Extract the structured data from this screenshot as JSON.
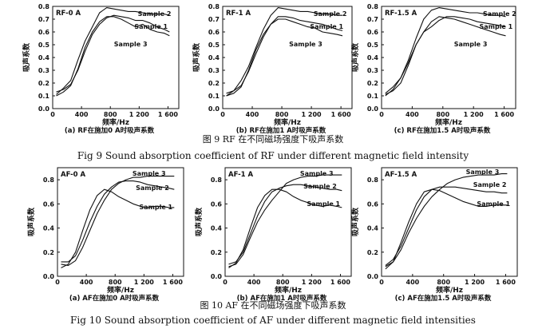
{
  "figures": [
    {
      "caption_cn": "图 9    RF 在不同磁场强度下吸声系数",
      "caption_en": "Fig 9 Sound absorption coefficient of RF under different magnetic field intensity"
    },
    {
      "caption_cn": "图 10    AF 在不同磁场强度下吸声系数",
      "caption_en": "Fig 10 Sound absorption coefficient of AF under different magnetic field intensities"
    }
  ],
  "chart_data": [
    {
      "type": "line",
      "tag": "RF-0 A",
      "caption": "(a) RF在施加0 A时吸声系数",
      "xlabel": "频率/Hz",
      "ylabel": "吸声系数",
      "xlim": [
        0,
        1750
      ],
      "ylim": [
        0,
        0.8
      ],
      "xticks": [
        "0",
        "400",
        "800",
        "1 200",
        "1 600"
      ],
      "yticks": [
        "0.0",
        "0.1",
        "0.2",
        "0.3",
        "0.4",
        "0.5",
        "0.6",
        "0.7",
        "0.8"
      ],
      "series": [
        {
          "name": "Sample 2",
          "x": [
            50,
            150,
            250,
            350,
            450,
            550,
            650,
            750,
            850,
            950,
            1050,
            1150,
            1250,
            1350,
            1450,
            1550,
            1620
          ],
          "y": [
            0.11,
            0.16,
            0.22,
            0.38,
            0.53,
            0.64,
            0.75,
            0.79,
            0.78,
            0.77,
            0.76,
            0.76,
            0.75,
            0.74,
            0.74,
            0.74,
            0.73
          ]
        },
        {
          "name": "Sample 1",
          "x": [
            50,
            150,
            250,
            350,
            450,
            550,
            650,
            750,
            850,
            950,
            1050,
            1150,
            1250,
            1350,
            1450,
            1550,
            1620
          ],
          "y": [
            0.13,
            0.15,
            0.19,
            0.3,
            0.45,
            0.58,
            0.66,
            0.71,
            0.73,
            0.72,
            0.71,
            0.69,
            0.69,
            0.67,
            0.64,
            0.62,
            0.6
          ]
        },
        {
          "name": "Sample 3",
          "x": [
            50,
            150,
            250,
            350,
            450,
            550,
            650,
            750,
            850,
            950,
            1050,
            1150,
            1250,
            1350,
            1450,
            1550,
            1620
          ],
          "y": [
            0.1,
            0.13,
            0.18,
            0.31,
            0.48,
            0.6,
            0.68,
            0.72,
            0.72,
            0.7,
            0.67,
            0.64,
            0.66,
            0.62,
            0.6,
            0.59,
            0.57
          ]
        }
      ]
    },
    {
      "type": "line",
      "tag": "RF-1 A",
      "caption": "(b) RF在施加1 A时吸声系数",
      "xlabel": "频率/Hz",
      "ylabel": "吸声系数",
      "xlim": [
        0,
        1750
      ],
      "ylim": [
        0,
        0.8
      ],
      "xticks": [
        "0",
        "400",
        "800",
        "1 200",
        "1 600"
      ],
      "yticks": [
        "0.0",
        "0.1",
        "0.2",
        "0.3",
        "0.4",
        "0.5",
        "0.6",
        "0.7",
        "0.8"
      ],
      "series": [
        {
          "name": "Sample 2",
          "x": [
            50,
            150,
            250,
            350,
            450,
            550,
            650,
            750,
            850,
            950,
            1050,
            1150,
            1250,
            1350,
            1450,
            1550,
            1620
          ],
          "y": [
            0.1,
            0.14,
            0.22,
            0.33,
            0.48,
            0.62,
            0.73,
            0.79,
            0.78,
            0.77,
            0.76,
            0.76,
            0.75,
            0.74,
            0.74,
            0.73,
            0.73
          ]
        },
        {
          "name": "Sample 1",
          "x": [
            50,
            150,
            250,
            350,
            450,
            550,
            650,
            750,
            850,
            950,
            1050,
            1150,
            1250,
            1350,
            1450,
            1550,
            1620
          ],
          "y": [
            0.12,
            0.14,
            0.18,
            0.29,
            0.43,
            0.56,
            0.66,
            0.72,
            0.72,
            0.71,
            0.69,
            0.68,
            0.67,
            0.66,
            0.64,
            0.62,
            0.61
          ]
        },
        {
          "name": "Sample 3",
          "x": [
            50,
            150,
            250,
            350,
            450,
            550,
            650,
            750,
            850,
            950,
            1050,
            1150,
            1250,
            1350,
            1450,
            1550,
            1620
          ],
          "y": [
            0.1,
            0.12,
            0.17,
            0.3,
            0.46,
            0.58,
            0.66,
            0.7,
            0.7,
            0.68,
            0.66,
            0.64,
            0.63,
            0.6,
            0.59,
            0.58,
            0.57
          ]
        }
      ]
    },
    {
      "type": "line",
      "tag": "RF-1.5 A",
      "caption": "(c) RF在施加1.5 A时吸声系数",
      "xlabel": "频率/Hz",
      "ylabel": "吸声系数",
      "xlim": [
        0,
        1750
      ],
      "ylim": [
        0,
        0.8
      ],
      "xticks": [
        "0",
        "400",
        "800",
        "1 200",
        "1 600"
      ],
      "yticks": [
        "0.0",
        "0.1",
        "0.2",
        "0.3",
        "0.4",
        "0.5",
        "0.6",
        "0.7",
        "0.8"
      ],
      "series": [
        {
          "name": "Sample 2",
          "x": [
            50,
            150,
            250,
            350,
            450,
            550,
            650,
            750,
            850,
            950,
            1050,
            1150,
            1250,
            1350,
            1450,
            1550,
            1620
          ],
          "y": [
            0.1,
            0.15,
            0.24,
            0.38,
            0.55,
            0.7,
            0.77,
            0.79,
            0.78,
            0.77,
            0.76,
            0.75,
            0.75,
            0.74,
            0.73,
            0.73,
            0.72
          ]
        },
        {
          "name": "Sample 1",
          "x": [
            50,
            150,
            250,
            350,
            450,
            550,
            650,
            750,
            850,
            950,
            1050,
            1150,
            1250,
            1350,
            1450,
            1550,
            1620
          ],
          "y": [
            0.12,
            0.17,
            0.24,
            0.36,
            0.5,
            0.6,
            0.64,
            0.69,
            0.72,
            0.72,
            0.71,
            0.7,
            0.68,
            0.67,
            0.66,
            0.65,
            0.64
          ]
        },
        {
          "name": "Sample 3",
          "x": [
            50,
            150,
            250,
            350,
            450,
            550,
            650,
            750,
            850,
            950,
            1050,
            1150,
            1250,
            1350,
            1450,
            1550,
            1620
          ],
          "y": [
            0.11,
            0.14,
            0.2,
            0.34,
            0.5,
            0.6,
            0.68,
            0.72,
            0.71,
            0.7,
            0.68,
            0.66,
            0.64,
            0.62,
            0.6,
            0.58,
            0.57
          ]
        }
      ]
    },
    {
      "type": "line",
      "tag": "AF-0 A",
      "caption": "(a) AF在施加0 A时吸声系数",
      "xlabel": "频率/Hz",
      "ylabel": "吸声系数",
      "xlim": [
        0,
        1750
      ],
      "ylim": [
        0,
        0.9
      ],
      "xticks": [
        "0",
        "400",
        "800",
        "1 200",
        "1 600"
      ],
      "yticks": [
        "0.0",
        "0.2",
        "0.4",
        "0.6",
        "0.8"
      ],
      "series": [
        {
          "name": "Sample 3",
          "x": [
            50,
            150,
            250,
            350,
            450,
            550,
            650,
            750,
            850,
            950,
            1050,
            1150,
            1250,
            1350,
            1450,
            1550,
            1620
          ],
          "y": [
            0.1,
            0.09,
            0.13,
            0.24,
            0.38,
            0.52,
            0.63,
            0.72,
            0.77,
            0.8,
            0.82,
            0.82,
            0.83,
            0.83,
            0.83,
            0.83,
            0.83
          ]
        },
        {
          "name": "Sample 2",
          "x": [
            50,
            150,
            250,
            350,
            450,
            550,
            650,
            750,
            850,
            950,
            1050,
            1150,
            1250,
            1350,
            1450,
            1550,
            1620
          ],
          "y": [
            0.12,
            0.12,
            0.17,
            0.3,
            0.45,
            0.58,
            0.68,
            0.74,
            0.78,
            0.79,
            0.79,
            0.78,
            0.76,
            0.75,
            0.74,
            0.73,
            0.72
          ]
        },
        {
          "name": "Sample 1",
          "x": [
            50,
            150,
            250,
            350,
            450,
            550,
            650,
            750,
            850,
            950,
            1050,
            1150,
            1250,
            1350,
            1450,
            1550,
            1620
          ],
          "y": [
            0.07,
            0.1,
            0.2,
            0.38,
            0.55,
            0.67,
            0.72,
            0.7,
            0.66,
            0.63,
            0.6,
            0.58,
            0.57,
            0.58,
            0.58,
            0.57,
            0.57
          ]
        }
      ]
    },
    {
      "type": "line",
      "tag": "AF-1 A",
      "caption": "(b) AF在施加1 A时吸声系数",
      "xlabel": "频率/Hz",
      "ylabel": "吸声系数",
      "xlim": [
        0,
        1750
      ],
      "ylim": [
        0,
        0.9
      ],
      "xticks": [
        "0",
        "400",
        "800",
        "1 200",
        "1 600"
      ],
      "yticks": [
        "0.0",
        "0.2",
        "0.4",
        "0.6",
        "0.8"
      ],
      "series": [
        {
          "name": "Sample 3",
          "x": [
            50,
            150,
            250,
            350,
            450,
            550,
            650,
            750,
            850,
            950,
            1050,
            1150,
            1250,
            1350,
            1450,
            1550,
            1620
          ],
          "y": [
            0.08,
            0.1,
            0.18,
            0.32,
            0.45,
            0.55,
            0.63,
            0.7,
            0.77,
            0.8,
            0.82,
            0.83,
            0.83,
            0.84,
            0.84,
            0.84,
            0.84
          ]
        },
        {
          "name": "Sample 2",
          "x": [
            50,
            150,
            250,
            350,
            450,
            550,
            650,
            750,
            850,
            950,
            1050,
            1150,
            1250,
            1350,
            1450,
            1550,
            1620
          ],
          "y": [
            0.1,
            0.12,
            0.2,
            0.35,
            0.5,
            0.62,
            0.7,
            0.73,
            0.75,
            0.76,
            0.76,
            0.75,
            0.74,
            0.73,
            0.72,
            0.72,
            0.71
          ]
        },
        {
          "name": "Sample 1",
          "x": [
            50,
            150,
            250,
            350,
            450,
            550,
            650,
            750,
            850,
            950,
            1050,
            1150,
            1250,
            1350,
            1450,
            1550,
            1620
          ],
          "y": [
            0.07,
            0.11,
            0.22,
            0.4,
            0.57,
            0.67,
            0.72,
            0.72,
            0.7,
            0.66,
            0.63,
            0.61,
            0.59,
            0.58,
            0.59,
            0.58,
            0.57
          ]
        }
      ]
    },
    {
      "type": "line",
      "tag": "AF-1.5 A",
      "caption": "(c) AF在施加1.5 A时吸声系数",
      "xlabel": "频率/Hz",
      "ylabel": "吸声系数",
      "xlim": [
        0,
        1750
      ],
      "ylim": [
        0,
        0.9
      ],
      "xticks": [
        "0",
        "400",
        "800",
        "1 200",
        "1 600"
      ],
      "yticks": [
        "0.0",
        "0.2",
        "0.4",
        "0.6",
        "0.8"
      ],
      "series": [
        {
          "name": "Sample 3",
          "x": [
            50,
            150,
            250,
            350,
            450,
            550,
            650,
            750,
            850,
            950,
            1050,
            1150,
            1250,
            1350,
            1450,
            1550,
            1620
          ],
          "y": [
            0.08,
            0.12,
            0.22,
            0.36,
            0.48,
            0.58,
            0.66,
            0.72,
            0.77,
            0.8,
            0.82,
            0.83,
            0.84,
            0.84,
            0.84,
            0.85,
            0.85
          ]
        },
        {
          "name": "Sample 2",
          "x": [
            50,
            150,
            250,
            350,
            450,
            550,
            650,
            750,
            850,
            950,
            1050,
            1150,
            1250,
            1350,
            1450,
            1550,
            1620
          ],
          "y": [
            0.09,
            0.14,
            0.25,
            0.4,
            0.55,
            0.66,
            0.72,
            0.74,
            0.74,
            0.74,
            0.73,
            0.72,
            0.71,
            0.7,
            0.7,
            0.69,
            0.69
          ]
        },
        {
          "name": "Sample 1",
          "x": [
            50,
            150,
            250,
            350,
            450,
            550,
            650,
            750,
            850,
            950,
            1050,
            1150,
            1250,
            1350,
            1450,
            1550,
            1620
          ],
          "y": [
            0.06,
            0.12,
            0.28,
            0.45,
            0.6,
            0.7,
            0.72,
            0.71,
            0.68,
            0.65,
            0.62,
            0.6,
            0.58,
            0.58,
            0.59,
            0.59,
            0.59
          ]
        }
      ]
    }
  ]
}
